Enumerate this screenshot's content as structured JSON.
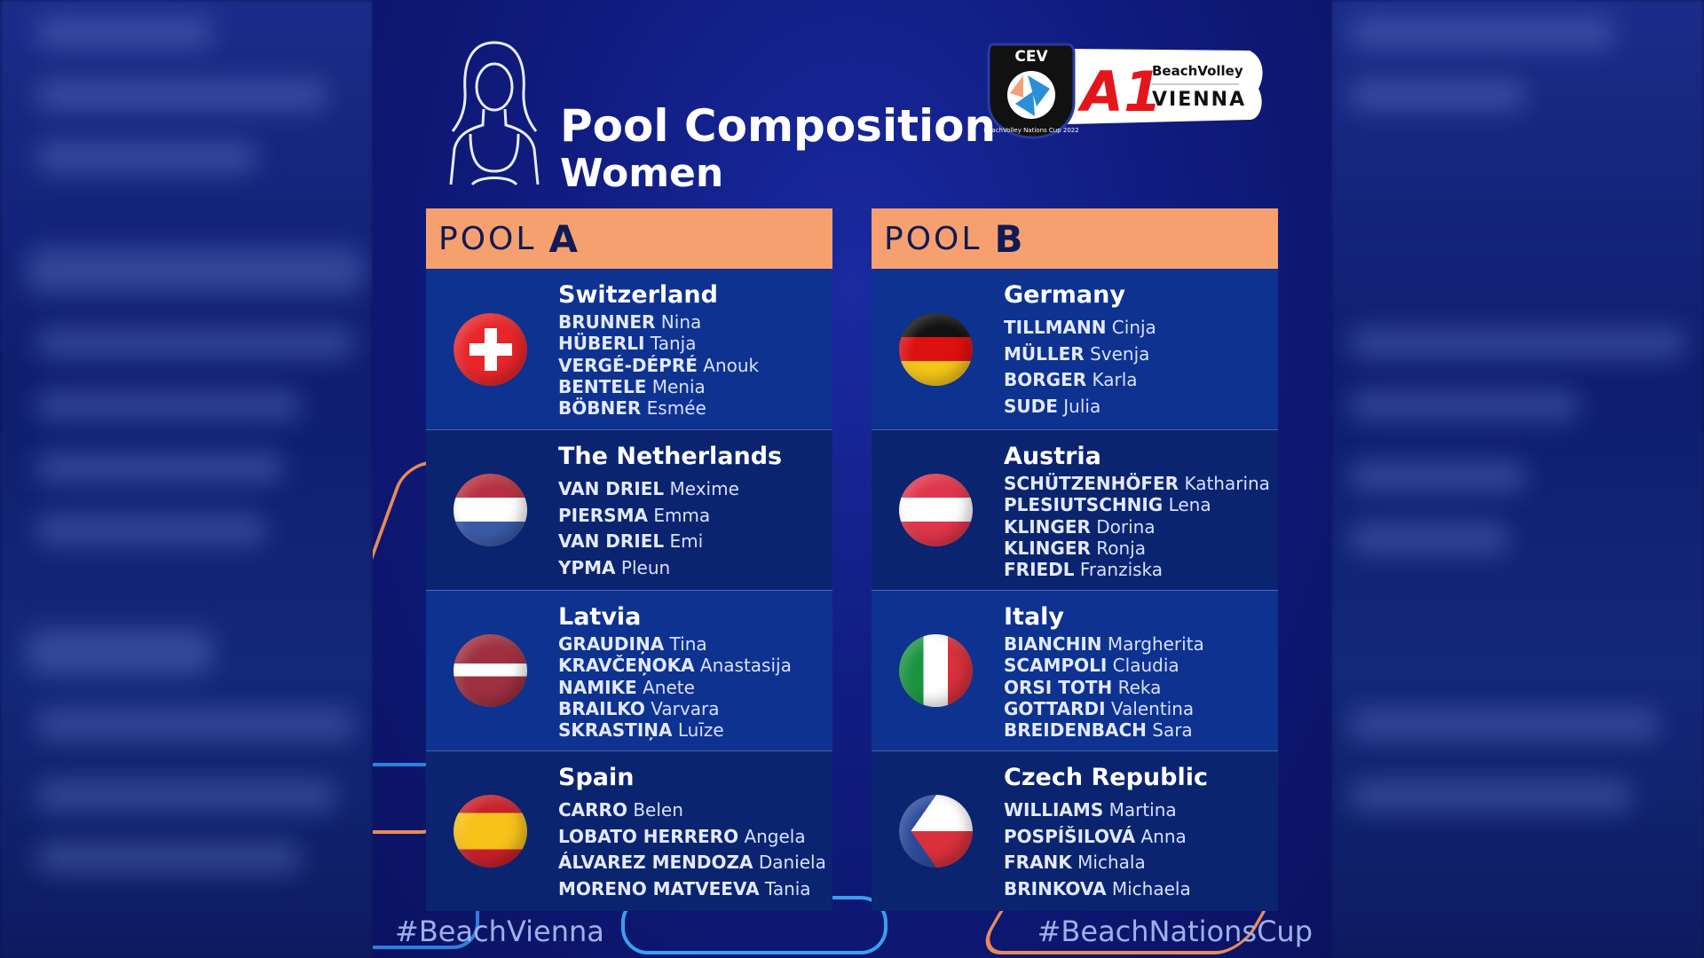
{
  "title": {
    "line1": "Pool Composition",
    "line2": "Women"
  },
  "logo": {
    "cev": "CEV",
    "ring": "BeachVolley Nations Cup 2022",
    "brand": "A1",
    "line1": "BeachVolley",
    "line2": "VIENNA"
  },
  "pools": [
    {
      "label": "POOL",
      "letter": "A",
      "teams": [
        {
          "country": "Switzerland",
          "flag": "switzerland",
          "players": [
            [
              "BRUNNER",
              "Nina"
            ],
            [
              "HÜBERLI",
              "Tanja"
            ],
            [
              "VERGÉ-DÉPRÉ",
              "Anouk"
            ],
            [
              "BENTELE",
              "Menia"
            ],
            [
              "BÖBNER",
              "Esmée"
            ]
          ]
        },
        {
          "country": "The Netherlands",
          "flag": "netherlands",
          "players": [
            [
              "VAN DRIEL",
              "Mexime"
            ],
            [
              "PIERSMA",
              "Emma"
            ],
            [
              "VAN DRIEL",
              "Emi"
            ],
            [
              "YPMA",
              "Pleun"
            ]
          ]
        },
        {
          "country": "Latvia",
          "flag": "latvia",
          "players": [
            [
              "GRAUDIŅA",
              "Tina"
            ],
            [
              "KRAVČEŅOKA",
              "Anastasija"
            ],
            [
              "NAMIKE",
              "Anete"
            ],
            [
              "BRAILKO",
              "Varvara"
            ],
            [
              "SKRASTIŅA",
              "Luīze"
            ]
          ]
        },
        {
          "country": "Spain",
          "flag": "spain",
          "players": [
            [
              "CARRO",
              "Belen"
            ],
            [
              "LOBATO HERRERO",
              "Angela"
            ],
            [
              "ÁLVAREZ MENDOZA",
              "Daniela"
            ],
            [
              "MORENO MATVEEVA",
              "Tania"
            ]
          ]
        }
      ]
    },
    {
      "label": "POOL",
      "letter": "B",
      "teams": [
        {
          "country": "Germany",
          "flag": "germany",
          "players": [
            [
              "TILLMANN",
              "Cinja"
            ],
            [
              "MÜLLER",
              "Svenja"
            ],
            [
              "BORGER",
              "Karla"
            ],
            [
              "SUDE",
              "Julia"
            ]
          ]
        },
        {
          "country": "Austria",
          "flag": "austria",
          "players": [
            [
              "SCHÜTZENHÖFER",
              "Katharina"
            ],
            [
              "PLESIUTSCHNIG",
              "Lena"
            ],
            [
              "KLINGER",
              "Dorina"
            ],
            [
              "KLINGER",
              "Ronja"
            ],
            [
              "FRIEDL",
              "Franziska"
            ]
          ]
        },
        {
          "country": "Italy",
          "flag": "italy",
          "players": [
            [
              "BIANCHIN",
              "Margherita"
            ],
            [
              "SCAMPOLI",
              "Claudia"
            ],
            [
              "ORSI TOTH",
              "Reka"
            ],
            [
              "GOTTARDI",
              "Valentina"
            ],
            [
              "BREIDENBACH",
              "Sara"
            ]
          ]
        },
        {
          "country": "Czech Republic",
          "flag": "czech-republic",
          "players": [
            [
              "WILLIAMS",
              "Martina"
            ],
            [
              "POSPÍŠILOVÁ",
              "Anna"
            ],
            [
              "FRANK",
              "Michala"
            ],
            [
              "BRINKOVA",
              "Michaela"
            ]
          ]
        }
      ]
    }
  ],
  "hashtags": {
    "left": "#BeachVienna",
    "right": "#BeachNationsCup"
  },
  "colors": {
    "pool_header": "#f7a06f",
    "panel": "#101c80",
    "row_light": "#0d3290",
    "row_dark": "#0a2470"
  }
}
